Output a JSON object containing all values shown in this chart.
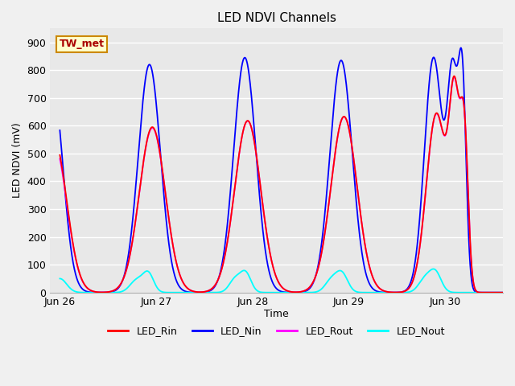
{
  "title": "LED NDVI Channels",
  "xlabel": "Time",
  "ylabel": "LED NDVI (mV)",
  "ylim": [
    0,
    950
  ],
  "yticks": [
    0,
    100,
    200,
    300,
    400,
    500,
    600,
    700,
    800,
    900
  ],
  "background_color": "#f0f0f0",
  "plot_bg_color": "#e8e8e8",
  "grid_color": "#ffffff",
  "annotation_text": "TW_met",
  "annotation_bg": "#ffffcc",
  "annotation_border": "#cc8800",
  "annotation_text_color": "#aa0000",
  "colors": {
    "LED_Rin": "#ff0000",
    "LED_Nin": "#0000ff",
    "LED_Rout": "#ff00ff",
    "LED_Nout": "#00ffff"
  },
  "x_tick_labels": [
    "Jun 26",
    "Jun 27",
    "Jun 28",
    "Jun 29",
    "Jun 30"
  ],
  "x_tick_positions": [
    0.0,
    1.0,
    2.0,
    3.0,
    4.0
  ],
  "xlim": [
    -0.1,
    4.6
  ]
}
